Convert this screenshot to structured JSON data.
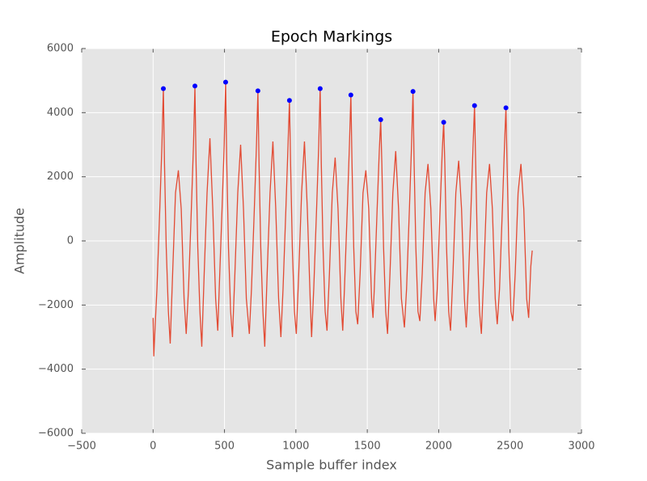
{
  "chart_data": {
    "type": "line",
    "title": "Epoch Markings",
    "xlabel": "Sample buffer index",
    "ylabel": "Amplitude",
    "xlim": [
      -500,
      3000
    ],
    "ylim": [
      -6000,
      6000
    ],
    "xticks": [
      {
        "value": -500,
        "label": "−500"
      },
      0,
      500,
      1000,
      1500,
      2000,
      2500,
      3000
    ],
    "yticks": [
      {
        "value": -6000,
        "label": "−6000"
      },
      {
        "value": -4000,
        "label": "−4000"
      },
      {
        "value": -2000,
        "label": "−2000"
      },
      0,
      2000,
      4000,
      6000
    ],
    "grid": true,
    "background": "#e5e5e5",
    "series": [
      {
        "type": "line",
        "color": "#e24a33",
        "x": [
          0,
          5,
          15,
          27,
          47,
          62,
          72,
          80,
          92,
          107,
          120,
          137,
          157,
          177,
          197,
          217,
          232,
          248,
          268,
          283,
          293,
          301,
          313,
          328,
          341,
          358,
          378,
          398,
          418,
          438,
          453,
          463,
          483,
          498,
          508,
          516,
          528,
          543,
          556,
          573,
          593,
          613,
          633,
          653,
          674,
          689,
          709,
          724,
          734,
          742,
          754,
          769,
          782,
          799,
          819,
          839,
          859,
          879,
          895,
          910,
          930,
          945,
          955,
          963,
          975,
          990,
          1003,
          1020,
          1040,
          1060,
          1080,
          1100,
          1110,
          1125,
          1145,
          1160,
          1170,
          1178,
          1190,
          1205,
          1218,
          1235,
          1255,
          1275,
          1295,
          1315,
          1328,
          1340,
          1360,
          1375,
          1385,
          1393,
          1405,
          1420,
          1433,
          1450,
          1470,
          1490,
          1510,
          1530,
          1540,
          1549,
          1569,
          1584,
          1594,
          1602,
          1614,
          1629,
          1642,
          1659,
          1679,
          1699,
          1719,
          1739,
          1760,
          1775,
          1795,
          1810,
          1820,
          1828,
          1840,
          1855,
          1868,
          1885,
          1905,
          1925,
          1945,
          1965,
          1975,
          1990,
          2010,
          2025,
          2035,
          2043,
          2055,
          2070,
          2083,
          2100,
          2120,
          2140,
          2160,
          2180,
          2193,
          2206,
          2226,
          2241,
          2251,
          2259,
          2271,
          2286,
          2299,
          2316,
          2336,
          2356,
          2376,
          2396,
          2410,
          2426,
          2446,
          2461,
          2471,
          2479,
          2491,
          2506,
          2519,
          2536,
          2556,
          2576,
          2596,
          2616,
          2630,
          2645,
          2655
        ],
        "values": [
          -2400,
          -3600,
          -2600,
          -1500,
          1000,
          3000,
          4750,
          2400,
          -200,
          -2200,
          -3200,
          -1000,
          1500,
          2200,
          1000,
          -1800,
          -2900,
          -1500,
          1000,
          3000,
          4830,
          2400,
          -200,
          -2200,
          -3300,
          -1000,
          1500,
          3200,
          1000,
          -1800,
          -2800,
          -1500,
          1000,
          3000,
          4950,
          2400,
          -200,
          -2200,
          -3000,
          -1000,
          1500,
          3000,
          1000,
          -1800,
          -2900,
          -1500,
          1000,
          3000,
          4680,
          2400,
          -200,
          -2200,
          -3300,
          -1000,
          1500,
          3100,
          1000,
          -1800,
          -3000,
          -1500,
          1000,
          3000,
          4380,
          2400,
          -200,
          -2200,
          -2900,
          -1000,
          1500,
          3100,
          1000,
          -1800,
          -3000,
          -1500,
          1000,
          3000,
          4750,
          2400,
          -200,
          -2200,
          -2800,
          -1000,
          1500,
          2600,
          1000,
          -1800,
          -2800,
          -1500,
          1000,
          3000,
          4550,
          2400,
          -200,
          -2200,
          -2600,
          -1000,
          1500,
          2200,
          1000,
          -1800,
          -2400,
          -1500,
          1000,
          2800,
          3780,
          2400,
          -200,
          -2200,
          -2900,
          -1000,
          1500,
          2800,
          1000,
          -1800,
          -2700,
          -1500,
          1000,
          3000,
          4660,
          2400,
          -200,
          -2200,
          -2500,
          -1000,
          1500,
          2400,
          1000,
          -1800,
          -2500,
          -1500,
          1000,
          2800,
          3700,
          2400,
          -200,
          -2200,
          -2800,
          -1000,
          1500,
          2500,
          1000,
          -1800,
          -2700,
          -1500,
          1000,
          3000,
          4220,
          2400,
          -200,
          -2200,
          -2900,
          -1000,
          1500,
          2400,
          1000,
          -1800,
          -2600,
          -1500,
          1000,
          3000,
          4150,
          2400,
          -200,
          -2200,
          -2500,
          -1000,
          1500,
          2400,
          1000,
          -1800,
          -2400,
          -800,
          -300
        ]
      },
      {
        "type": "scatter",
        "color": "#0000ff",
        "x": [
          72,
          293,
          508,
          734,
          955,
          1170,
          1385,
          1594,
          1820,
          2035,
          2251,
          2471
        ],
        "values": [
          4750,
          4830,
          4950,
          4680,
          4380,
          4750,
          4550,
          3780,
          4660,
          3700,
          4220,
          4150
        ]
      }
    ]
  }
}
